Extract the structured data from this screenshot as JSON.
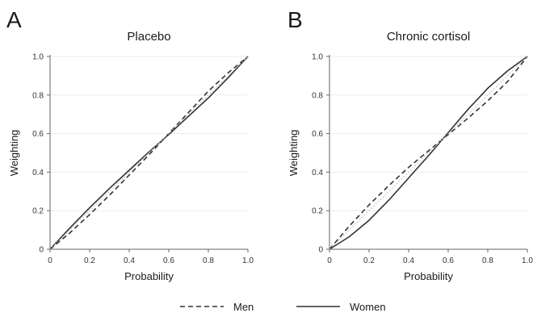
{
  "chart_data": [
    {
      "type": "line",
      "panel_label": "A",
      "title": "Placebo",
      "xlabel": "Probability",
      "ylabel": "Weighting",
      "xlim": [
        0,
        1
      ],
      "ylim": [
        0,
        1
      ],
      "xticks": [
        "0",
        "0.2",
        "0.4",
        "0.6",
        "0.8",
        "1.0"
      ],
      "yticks": [
        "0",
        "0.2",
        "0.4",
        "0.6",
        "0.8",
        "1.0"
      ],
      "grid": true,
      "series": [
        {
          "name": "Men",
          "style": "dashed",
          "x": [
            0,
            0.1,
            0.2,
            0.3,
            0.4,
            0.5,
            0.6,
            0.7,
            0.8,
            0.9,
            1.0
          ],
          "y": [
            0,
            0.085,
            0.18,
            0.28,
            0.385,
            0.49,
            0.6,
            0.71,
            0.82,
            0.915,
            1.0
          ]
        },
        {
          "name": "Women",
          "style": "solid",
          "x": [
            0,
            0.1,
            0.2,
            0.3,
            0.4,
            0.5,
            0.6,
            0.7,
            0.8,
            0.9,
            1.0
          ],
          "y": [
            0,
            0.11,
            0.215,
            0.315,
            0.41,
            0.505,
            0.595,
            0.69,
            0.785,
            0.89,
            1.0
          ]
        },
        {
          "name": "",
          "style": "dotted",
          "x": [
            0,
            1
          ],
          "y": [
            0,
            1
          ]
        }
      ]
    },
    {
      "type": "line",
      "panel_label": "B",
      "title": "Chronic cortisol",
      "xlabel": "Probability",
      "ylabel": "Weighting",
      "xlim": [
        0,
        1
      ],
      "ylim": [
        0,
        1
      ],
      "xticks": [
        "0",
        "0.2",
        "0.4",
        "0.6",
        "0.8",
        "1.0"
      ],
      "yticks": [
        "0",
        "0.2",
        "0.4",
        "0.6",
        "0.8",
        "1.0"
      ],
      "grid": true,
      "series": [
        {
          "name": "Men",
          "style": "dashed",
          "x": [
            0,
            0.1,
            0.2,
            0.3,
            0.4,
            0.5,
            0.6,
            0.7,
            0.8,
            0.9,
            1.0
          ],
          "y": [
            0,
            0.12,
            0.23,
            0.33,
            0.425,
            0.51,
            0.595,
            0.68,
            0.77,
            0.87,
            1.0
          ]
        },
        {
          "name": "Women",
          "style": "solid",
          "x": [
            0,
            0.1,
            0.2,
            0.3,
            0.4,
            0.5,
            0.6,
            0.7,
            0.8,
            0.9,
            1.0
          ],
          "y": [
            0,
            0.065,
            0.15,
            0.255,
            0.37,
            0.485,
            0.605,
            0.725,
            0.835,
            0.925,
            1.0
          ]
        },
        {
          "name": "",
          "style": "dotted",
          "x": [
            0,
            1
          ],
          "y": [
            0,
            1
          ]
        }
      ]
    }
  ],
  "legend": {
    "placement": "bottom-center",
    "items": [
      {
        "label": "Men",
        "style": "dashed"
      },
      {
        "label": "Women",
        "style": "solid"
      }
    ]
  },
  "colors": {
    "line": "#333333",
    "reference": "#bbbbbb",
    "grid": "#ececec"
  }
}
